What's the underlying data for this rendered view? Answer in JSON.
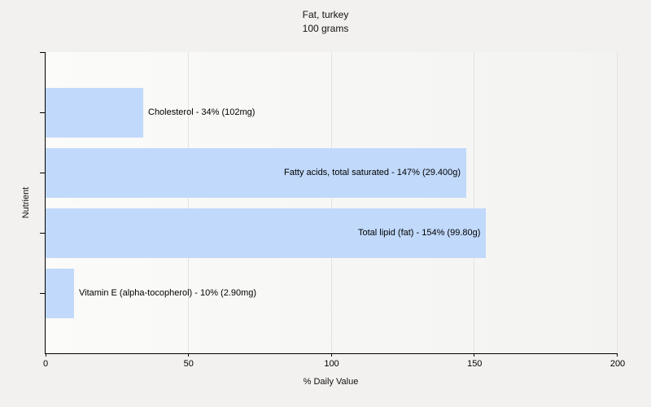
{
  "page": {
    "background": "#f2f1ef"
  },
  "chart_data": {
    "type": "bar",
    "orientation": "horizontal",
    "title": "Fat, turkey",
    "subtitle": "100 grams",
    "xlabel": "% Daily Value",
    "ylabel": "Nutrient",
    "xlim": [
      0,
      200
    ],
    "xticks": [
      0,
      50,
      100,
      150,
      200
    ],
    "grid": true,
    "legend": "none",
    "bar_color": "#c1d9fb",
    "categories": [
      "Cholesterol",
      "Fatty acids, total saturated",
      "Total lipid (fat)",
      "Vitamin E (alpha-tocopherol)"
    ],
    "values": [
      34,
      147,
      154,
      10
    ],
    "bars": [
      {
        "nutrient": "Cholesterol",
        "percent_daily_value": 34,
        "amount": "102mg",
        "label": "Cholesterol - 34% (102mg)"
      },
      {
        "nutrient": "Fatty acids, total saturated",
        "percent_daily_value": 147,
        "amount": "29.400g",
        "label": "Fatty acids, total saturated - 147% (29.400g)"
      },
      {
        "nutrient": "Total lipid (fat)",
        "percent_daily_value": 154,
        "amount": "99.80g",
        "label": "Total lipid (fat) - 154% (99.80g)"
      },
      {
        "nutrient": "Vitamin E (alpha-tocopherol)",
        "percent_daily_value": 10,
        "amount": "2.90mg",
        "label": "Vitamin E (alpha-tocopherol) - 10% (2.90mg)"
      }
    ]
  }
}
